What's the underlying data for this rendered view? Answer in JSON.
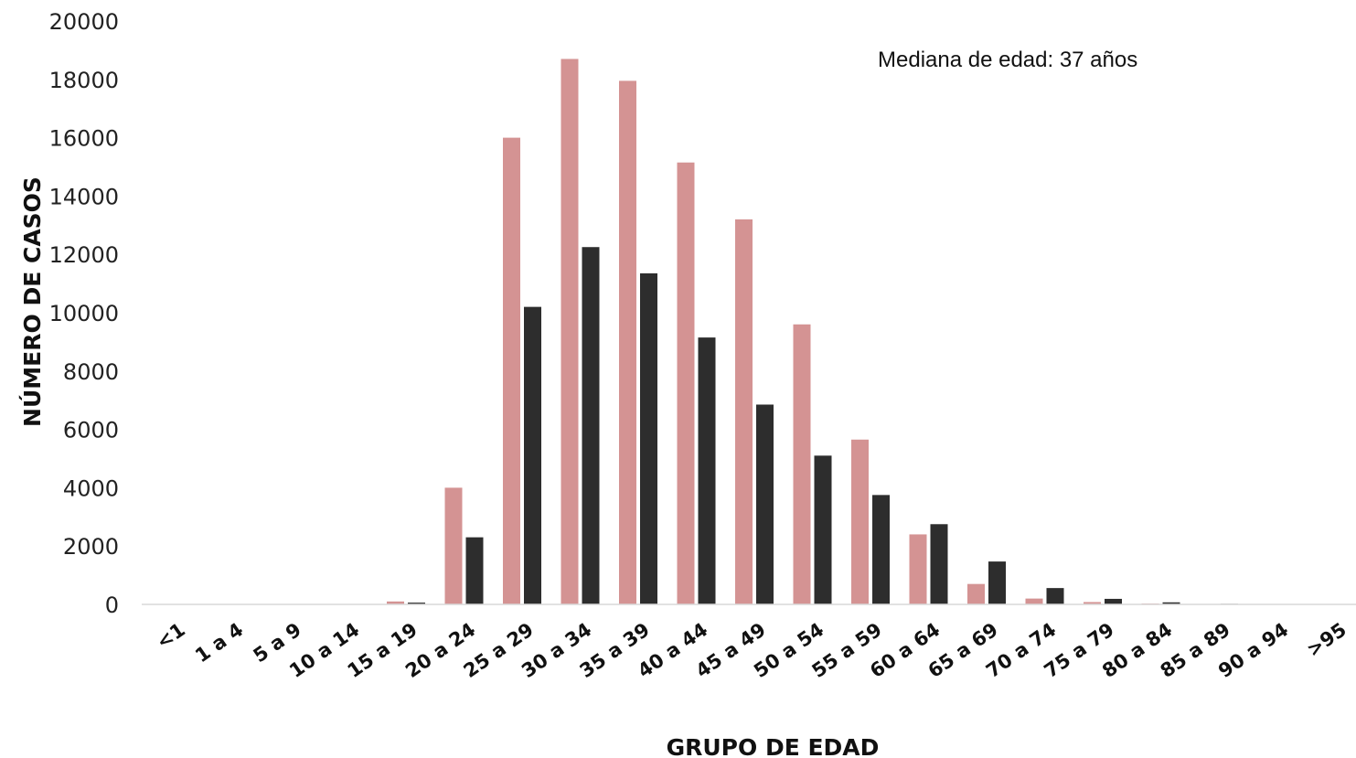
{
  "chart_data": {
    "type": "bar",
    "title": "",
    "xlabel": "GRUPO DE EDAD",
    "ylabel": "NÚMERO DE CASOS",
    "annotation": "Mediana de edad: 37 años",
    "ylim": [
      0,
      20000
    ],
    "yticks": [
      0,
      2000,
      4000,
      6000,
      8000,
      10000,
      12000,
      14000,
      16000,
      18000,
      20000
    ],
    "grid": false,
    "categories": [
      "<1",
      "1 a 4",
      "5 a 9",
      "10 a 14",
      "15 a 19",
      "20 a 24",
      "25 a 29",
      "30 a 34",
      "35 a 39",
      "40 a 44",
      "45 a 49",
      "50 a 54",
      "55 a 59",
      "60 a 64",
      "65 a 69",
      "70 a 74",
      "75 a 79",
      "80 a 84",
      "85 a 89",
      "90 a 94",
      ">95"
    ],
    "series": [
      {
        "color": "#d49393",
        "values": [
          0,
          15,
          5,
          5,
          100,
          4000,
          16000,
          18700,
          17950,
          15150,
          13200,
          9600,
          5650,
          2400,
          700,
          200,
          80,
          30,
          10,
          5,
          0
        ]
      },
      {
        "color": "#2d2d2d",
        "values": [
          0,
          5,
          3,
          5,
          60,
          2300,
          10200,
          12250,
          11350,
          9150,
          6850,
          5100,
          3750,
          2750,
          1470,
          560,
          190,
          70,
          20,
          5,
          0
        ]
      }
    ]
  }
}
